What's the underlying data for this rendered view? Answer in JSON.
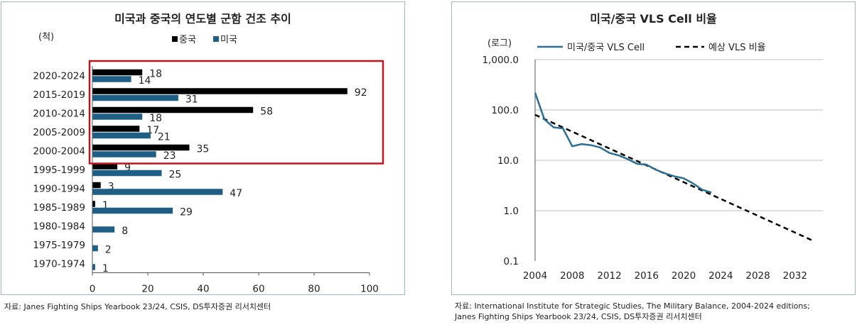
{
  "left": {
    "title": "미국과 중국의 연도별 군함 건조 추이",
    "source": "자료: Janes Fighting Ships Yearbook 23/24, CSIS, DS투자증권 리서치센터"
  },
  "right": {
    "title": "미국/중국 VLS Cell 비율",
    "source_line1": "자료: International Institute for Strategic Studies, The Military Balance, 2004-2024 editions;",
    "source_line2": "Janes Fighting Ships Yearbook 23/24, CSIS, DS투자증권 리서치센터"
  },
  "chart_data": [
    {
      "type": "bar",
      "orientation": "horizontal",
      "title": "미국과 중국의 연도별 군함 건조 추이",
      "unit_label": "(척)",
      "categories": [
        "2020-2024",
        "2015-2019",
        "2010-2014",
        "2005-2009",
        "2000-2004",
        "1995-1999",
        "1990-1994",
        "1985-1989",
        "1980-1984",
        "1975-1979",
        "1970-1974"
      ],
      "series": [
        {
          "name": "중국",
          "color": "#000000",
          "values": [
            18,
            92,
            58,
            17,
            35,
            9,
            3,
            1,
            null,
            null,
            null
          ]
        },
        {
          "name": "미국",
          "color": "#1f5f86",
          "values": [
            14,
            31,
            18,
            21,
            23,
            25,
            47,
            29,
            8,
            2,
            1
          ]
        }
      ],
      "xlim": [
        0,
        100
      ],
      "xticks": [
        0,
        20,
        40,
        60,
        80,
        100
      ],
      "legend_position": "top",
      "highlight": {
        "categories": [
          "2020-2024",
          "2015-2019",
          "2010-2014",
          "2005-2009",
          "2000-2004"
        ],
        "color": "#c0151c"
      },
      "grid": false
    },
    {
      "type": "line",
      "title": "미국/중국 VLS Cell 비율",
      "unit_label": "(로그)",
      "y_scale": "log",
      "ylim": [
        0.1,
        1000
      ],
      "yticks": [
        0.1,
        1,
        10,
        100,
        1000
      ],
      "ytick_labels": [
        "0.1",
        "1.0",
        "10.0",
        "100.0",
        "1,000.0"
      ],
      "xlim": [
        2004,
        2035
      ],
      "xticks": [
        2004,
        2008,
        2012,
        2016,
        2020,
        2024,
        2028,
        2032
      ],
      "grid": true,
      "legend_position": "top",
      "series": [
        {
          "name": "미국/중국 VLS Cell",
          "color": "#2a6e94",
          "style": "solid",
          "x": [
            2004,
            2005,
            2006,
            2007,
            2008,
            2009,
            2010,
            2011,
            2012,
            2013,
            2014,
            2015,
            2016,
            2017,
            2018,
            2019,
            2020,
            2021,
            2022,
            2023
          ],
          "y": [
            220,
            65,
            45,
            43,
            19,
            21,
            20,
            18,
            14,
            12.5,
            10.5,
            8.5,
            8.2,
            6.5,
            5.5,
            4.8,
            4.4,
            3.5,
            2.6,
            2.3
          ]
        },
        {
          "name": "예상 VLS 비율",
          "color": "#000000",
          "style": "dashed",
          "x": [
            2004,
            2034
          ],
          "y": [
            80,
            0.25
          ]
        }
      ]
    }
  ]
}
